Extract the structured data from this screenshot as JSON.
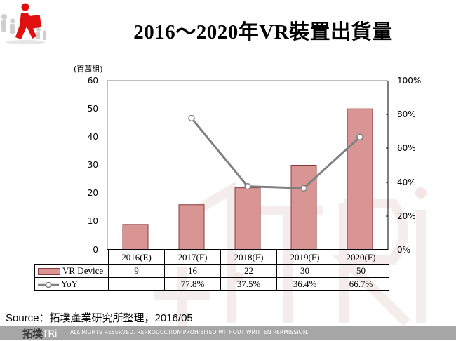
{
  "header": {
    "title": "2016～2020年VR裝置出貨量",
    "logo_icon": "person-carrying-briefcase-icon"
  },
  "chart_data": {
    "type": "bar",
    "title": "2016～2020年VR裝置出貨量",
    "categories": [
      "2016(E)",
      "2017(F)",
      "2018(F)",
      "2019(F)",
      "2020(F)"
    ],
    "series": [
      {
        "name": "VR Device",
        "type": "bar",
        "axis": "left",
        "values": [
          9,
          16,
          22,
          30,
          50
        ],
        "labels": [
          "9",
          "16",
          "22",
          "30",
          "50"
        ],
        "color": "#D99594",
        "border": "#8B3A3A"
      },
      {
        "name": "YoY",
        "type": "line",
        "axis": "right",
        "values": [
          null,
          77.8,
          37.5,
          36.4,
          66.7
        ],
        "labels": [
          "",
          "77.8%",
          "37.5%",
          "36.4%",
          "66.7%"
        ],
        "color": "#808080"
      }
    ],
    "ylabel": "(百萬組)",
    "ylim": [
      0,
      60
    ],
    "yticks": [
      "0",
      "10",
      "20",
      "30",
      "40",
      "50",
      "60"
    ],
    "y2lim": [
      0,
      100
    ],
    "y2ticks": [
      "0%",
      "20%",
      "40%",
      "60%",
      "80%",
      "100%"
    ],
    "legend_position": "data-table",
    "grid": false
  },
  "footer": {
    "source": "Source：拓墣產業研究所整理，2016/05",
    "brand": "拓墣",
    "brand_tri": "TRi",
    "rights": "ALL RIGHTS RESERVED. REPRODUCTION PROHIBITED WITHOUT WRITTEN PERMISSION."
  }
}
